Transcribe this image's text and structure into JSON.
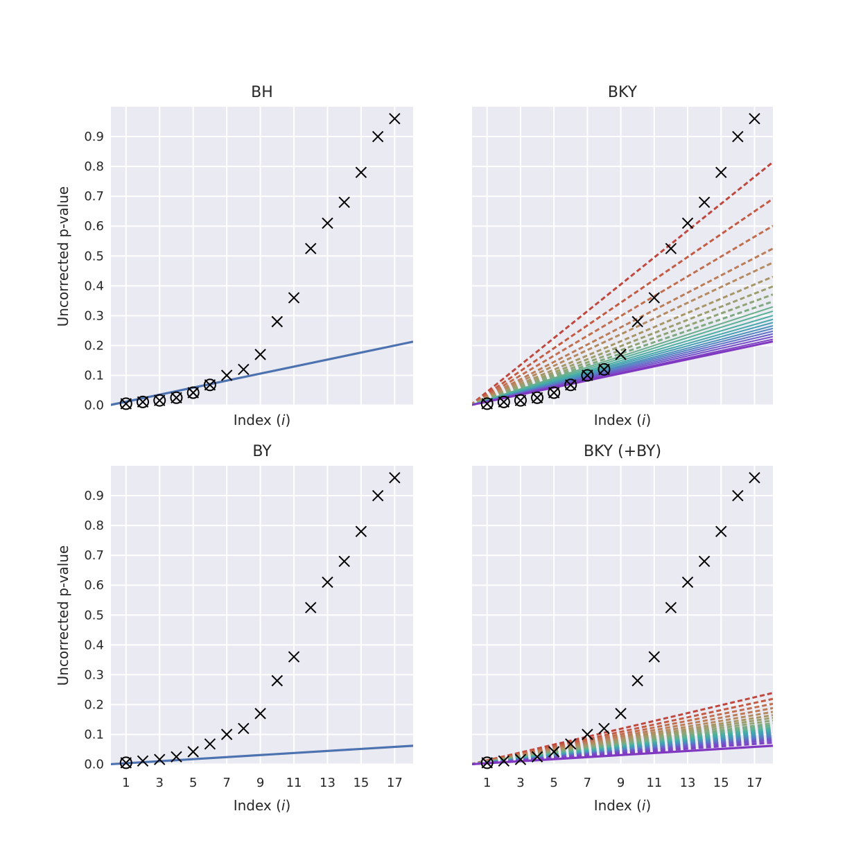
{
  "chart_data": [
    {
      "type": "scatter",
      "title": "BH",
      "xlabel": "Index (i)",
      "ylabel": "Uncorrected p-value",
      "xlim": [
        0.1,
        18.1
      ],
      "ylim": [
        -0.001,
        1.0
      ],
      "xticks": [
        1,
        3,
        5,
        7,
        9,
        11,
        13,
        15,
        17
      ],
      "show_xticklabels": false,
      "yticks": [
        0.0,
        0.1,
        0.2,
        0.3,
        0.4,
        0.5,
        0.6,
        0.7,
        0.8,
        0.9
      ],
      "ytick_labels": [
        "0.0",
        "0.1",
        "0.2",
        "0.3",
        "0.4",
        "0.5",
        "0.6",
        "0.7",
        "0.8",
        "0.9"
      ],
      "show_yticklabels": true,
      "x": [
        1,
        2,
        3,
        4,
        5,
        6,
        7,
        8,
        9,
        10,
        11,
        12,
        13,
        14,
        15,
        16,
        17
      ],
      "p_values": [
        0.005,
        0.011,
        0.016,
        0.025,
        0.042,
        0.068,
        0.1,
        0.12,
        0.17,
        0.28,
        0.36,
        0.525,
        0.61,
        0.68,
        0.78,
        0.9,
        0.96
      ],
      "significant_count": 6,
      "threshold_lines": [
        {
          "slope": 0.01176,
          "style": "solid",
          "color": "#4c72b0",
          "width": 3.2
        }
      ]
    },
    {
      "type": "scatter",
      "title": "BKY",
      "xlabel": "Index (i)",
      "ylabel": "",
      "xlim": [
        0.1,
        18.1
      ],
      "ylim": [
        -0.001,
        1.0
      ],
      "xticks": [
        1,
        3,
        5,
        7,
        9,
        11,
        13,
        15,
        17
      ],
      "show_xticklabels": false,
      "yticks": [
        0.0,
        0.1,
        0.2,
        0.3,
        0.4,
        0.5,
        0.6,
        0.7,
        0.8,
        0.9
      ],
      "show_yticklabels": false,
      "x": [
        1,
        2,
        3,
        4,
        5,
        6,
        7,
        8,
        9,
        10,
        11,
        12,
        13,
        14,
        15,
        16,
        17
      ],
      "p_values": [
        0.005,
        0.011,
        0.016,
        0.025,
        0.042,
        0.068,
        0.1,
        0.12,
        0.17,
        0.28,
        0.36,
        0.525,
        0.61,
        0.68,
        0.78,
        0.9,
        0.96
      ],
      "significant_count": 8,
      "threshold_lines": [
        {
          "slope": 0.045,
          "style": "dashed",
          "color": "#c0473d",
          "width": 3
        },
        {
          "slope": 0.0382,
          "style": "dashed",
          "color": "#c45a42",
          "width": 3
        },
        {
          "slope": 0.0332,
          "style": "dashed",
          "color": "#c06e4e",
          "width": 3
        },
        {
          "slope": 0.029,
          "style": "dashed",
          "color": "#bb7c57",
          "width": 3
        },
        {
          "slope": 0.0264,
          "style": "dashed",
          "color": "#b48a60",
          "width": 3
        },
        {
          "slope": 0.0238,
          "style": "dashed",
          "color": "#a89566",
          "width": 3
        },
        {
          "slope": 0.022,
          "style": "dashed",
          "color": "#9c9d6d",
          "width": 3
        },
        {
          "slope": 0.0205,
          "style": "dashed",
          "color": "#8fa476",
          "width": 3
        },
        {
          "slope": 0.0192,
          "style": "dashed",
          "color": "#7daa80",
          "width": 3
        },
        {
          "slope": 0.0182,
          "style": "solid",
          "color": "#6aae8c",
          "width": 2
        },
        {
          "slope": 0.0174,
          "style": "solid",
          "color": "#58b197",
          "width": 2
        },
        {
          "slope": 0.0166,
          "style": "solid",
          "color": "#4caea2",
          "width": 2
        },
        {
          "slope": 0.0159,
          "style": "solid",
          "color": "#45a8aa",
          "width": 2
        },
        {
          "slope": 0.0153,
          "style": "solid",
          "color": "#459eb3",
          "width": 2
        },
        {
          "slope": 0.0147,
          "style": "solid",
          "color": "#4b92bb",
          "width": 2
        },
        {
          "slope": 0.0142,
          "style": "solid",
          "color": "#5483c2",
          "width": 2
        },
        {
          "slope": 0.0137,
          "style": "solid",
          "color": "#5f72c6",
          "width": 2
        },
        {
          "slope": 0.0132,
          "style": "solid",
          "color": "#6a5fc8",
          "width": 2
        },
        {
          "slope": 0.0127,
          "style": "solid",
          "color": "#7550c8",
          "width": 2
        },
        {
          "slope": 0.0122,
          "style": "solid",
          "color": "#7e42c4",
          "width": 2
        },
        {
          "slope": 0.0118,
          "style": "solid",
          "color": "#8038c0",
          "width": 3
        }
      ]
    },
    {
      "type": "scatter",
      "title": "BY",
      "xlabel": "Index (i)",
      "ylabel": "Uncorrected p-value",
      "xlim": [
        0.1,
        18.1
      ],
      "ylim": [
        -0.001,
        1.0
      ],
      "xticks": [
        1,
        3,
        5,
        7,
        9,
        11,
        13,
        15,
        17
      ],
      "xtick_labels": [
        "1",
        "3",
        "5",
        "7",
        "9",
        "11",
        "13",
        "15",
        "17"
      ],
      "show_xticklabels": true,
      "yticks": [
        0.0,
        0.1,
        0.2,
        0.3,
        0.4,
        0.5,
        0.6,
        0.7,
        0.8,
        0.9
      ],
      "ytick_labels": [
        "0.0",
        "0.1",
        "0.2",
        "0.3",
        "0.4",
        "0.5",
        "0.6",
        "0.7",
        "0.8",
        "0.9"
      ],
      "show_yticklabels": true,
      "x": [
        1,
        2,
        3,
        4,
        5,
        6,
        7,
        8,
        9,
        10,
        11,
        12,
        13,
        14,
        15,
        16,
        17
      ],
      "p_values": [
        0.005,
        0.011,
        0.016,
        0.025,
        0.042,
        0.068,
        0.1,
        0.12,
        0.17,
        0.28,
        0.36,
        0.525,
        0.61,
        0.68,
        0.78,
        0.9,
        0.96
      ],
      "significant_count": 1,
      "threshold_lines": [
        {
          "slope": 0.00343,
          "style": "solid",
          "color": "#4c72b0",
          "width": 3.2
        }
      ]
    },
    {
      "type": "scatter",
      "title": "BKY (+BY)",
      "xlabel": "Index (i)",
      "ylabel": "",
      "xlim": [
        0.1,
        18.1
      ],
      "ylim": [
        -0.001,
        1.0
      ],
      "xticks": [
        1,
        3,
        5,
        7,
        9,
        11,
        13,
        15,
        17
      ],
      "xtick_labels": [
        "1",
        "3",
        "5",
        "7",
        "9",
        "11",
        "13",
        "15",
        "17"
      ],
      "show_xticklabels": true,
      "yticks": [
        0.0,
        0.1,
        0.2,
        0.3,
        0.4,
        0.5,
        0.6,
        0.7,
        0.8,
        0.9
      ],
      "show_yticklabels": false,
      "x": [
        1,
        2,
        3,
        4,
        5,
        6,
        7,
        8,
        9,
        10,
        11,
        12,
        13,
        14,
        15,
        16,
        17
      ],
      "p_values": [
        0.005,
        0.011,
        0.016,
        0.025,
        0.042,
        0.068,
        0.1,
        0.12,
        0.17,
        0.28,
        0.36,
        0.525,
        0.61,
        0.68,
        0.78,
        0.9,
        0.96
      ],
      "significant_count": 1,
      "threshold_lines": [
        {
          "slope": 0.0132,
          "style": "dashed",
          "color": "#c0473d",
          "width": 3
        },
        {
          "slope": 0.0121,
          "style": "dashed",
          "color": "#c45a42",
          "width": 3
        },
        {
          "slope": 0.0112,
          "style": "dashed",
          "color": "#c06e4e",
          "width": 3
        },
        {
          "slope": 0.0104,
          "style": "dashed",
          "color": "#bb7c57",
          "width": 3
        },
        {
          "slope": 0.0097,
          "style": "dashed",
          "color": "#b48a60",
          "width": 3
        },
        {
          "slope": 0.0091,
          "style": "dashed",
          "color": "#a89566",
          "width": 3
        },
        {
          "slope": 0.0086,
          "style": "dashed",
          "color": "#9c9d6d",
          "width": 3
        },
        {
          "slope": 0.0081,
          "style": "dashed",
          "color": "#8fa476",
          "width": 3
        },
        {
          "slope": 0.0076,
          "style": "dashed",
          "color": "#7daa80",
          "width": 3
        },
        {
          "slope": 0.0072,
          "style": "dashed",
          "color": "#6aae8c",
          "width": 3
        },
        {
          "slope": 0.0068,
          "style": "dashed",
          "color": "#58b197",
          "width": 3
        },
        {
          "slope": 0.0065,
          "style": "dashed",
          "color": "#4caea2",
          "width": 3
        },
        {
          "slope": 0.0062,
          "style": "dashed",
          "color": "#45a8aa",
          "width": 3
        },
        {
          "slope": 0.0059,
          "style": "dashed",
          "color": "#459eb3",
          "width": 3
        },
        {
          "slope": 0.0056,
          "style": "dashed",
          "color": "#4b92bb",
          "width": 3
        },
        {
          "slope": 0.0053,
          "style": "dashed",
          "color": "#5483c2",
          "width": 3
        },
        {
          "slope": 0.005,
          "style": "dashed",
          "color": "#5f72c6",
          "width": 3
        },
        {
          "slope": 0.0047,
          "style": "dashed",
          "color": "#6a5fc8",
          "width": 3
        },
        {
          "slope": 0.0044,
          "style": "dashed",
          "color": "#7550c8",
          "width": 3
        },
        {
          "slope": 0.004,
          "style": "dashed",
          "color": "#7e42c4",
          "width": 3
        },
        {
          "slope": 0.00343,
          "style": "solid",
          "color": "#8038c0",
          "width": 3.2
        }
      ]
    }
  ]
}
